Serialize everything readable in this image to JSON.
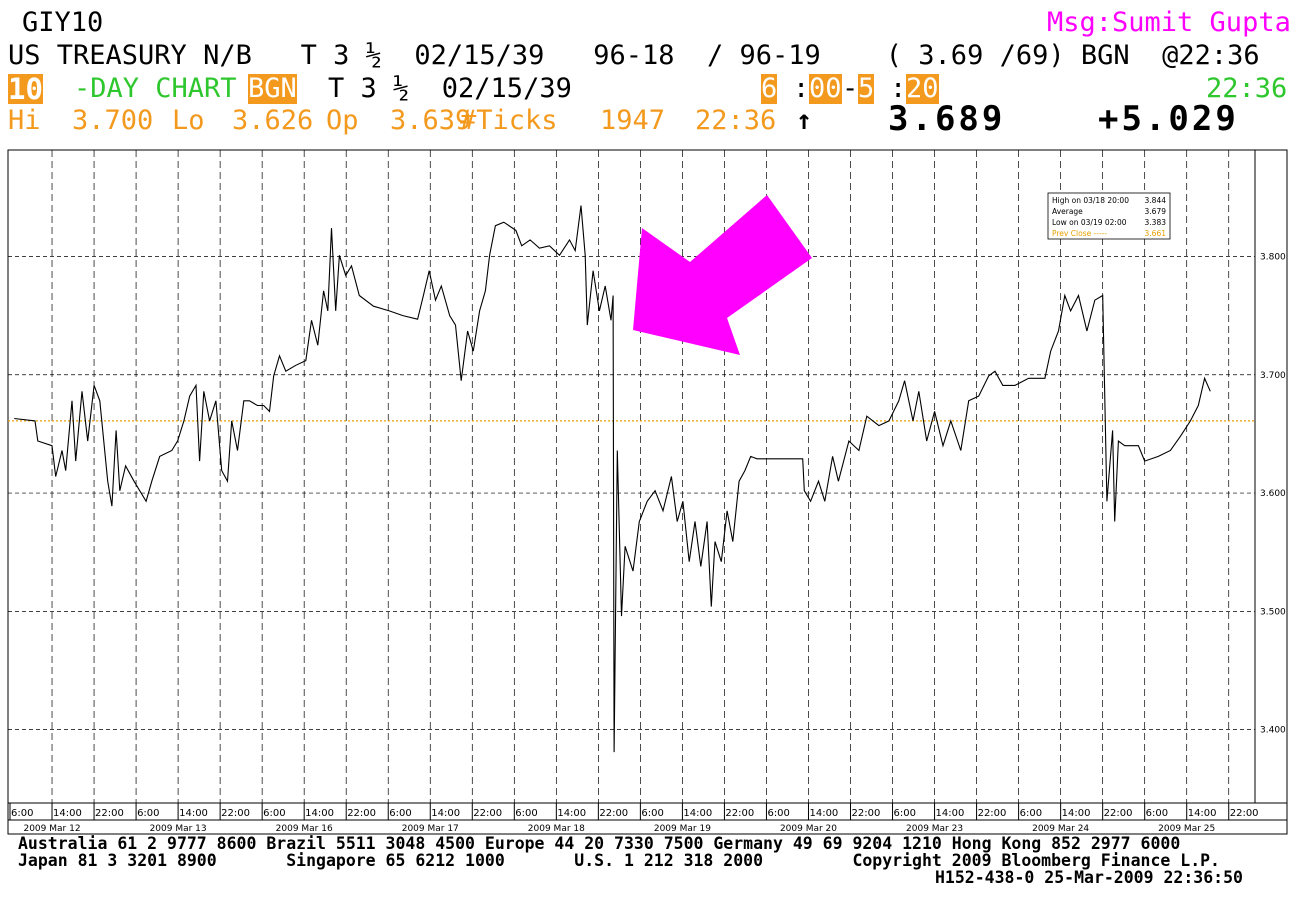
{
  "header": {
    "symbol": "GIY10",
    "msg": "Msg:Sumit Gupta",
    "security_line": "US TREASURY N/B   T 3 ½  02/15/39   96-18  / 96-19    ( 3.69 /69) BGN  @22:36",
    "chart_days": "10",
    "chart_label": "-DAY CHART",
    "source": "BGN",
    "bond": "T 3 ½  02/15/39",
    "start_hour": "6",
    "start_min": "00",
    "end_hour": "5",
    "end_min": "20",
    "time": "22:36",
    "stats": [
      "Hi",
      "3.700",
      "Lo",
      "3.626",
      "Op",
      "3.639",
      "#Ticks",
      "1947",
      "22:36"
    ],
    "direction": "↑",
    "last": "3.689",
    "change": "+5.029"
  },
  "chart_data": {
    "type": "line",
    "xlim": [
      0,
      237
    ],
    "ylim": [
      3.338,
      3.89
    ],
    "yticks": [
      {
        "value": 3.4,
        "label": "3.400"
      },
      {
        "value": 3.5,
        "label": "3.500"
      },
      {
        "value": 3.6,
        "label": "3.600"
      },
      {
        "value": 3.7,
        "label": "3.700"
      },
      {
        "value": 3.8,
        "label": "3.800"
      }
    ],
    "xticks": [
      {
        "value": 0,
        "label": "6:00"
      },
      {
        "value": 8,
        "label": "14:00"
      },
      {
        "value": 16,
        "label": "22:00"
      },
      {
        "value": 24,
        "label": "6:00"
      },
      {
        "value": 32,
        "label": "14:00"
      },
      {
        "value": 40,
        "label": "22:00"
      },
      {
        "value": 48,
        "label": "6:00"
      },
      {
        "value": 56,
        "label": "14:00"
      },
      {
        "value": 64,
        "label": "22:00"
      },
      {
        "value": 72,
        "label": "6:00"
      },
      {
        "value": 80,
        "label": "14:00"
      },
      {
        "value": 88,
        "label": "22:00"
      },
      {
        "value": 96,
        "label": "6:00"
      },
      {
        "value": 104,
        "label": "14:00"
      },
      {
        "value": 112,
        "label": "22:00"
      },
      {
        "value": 120,
        "label": "6:00"
      },
      {
        "value": 128,
        "label": "14:00"
      },
      {
        "value": 136,
        "label": "22:00"
      },
      {
        "value": 144,
        "label": "6:00"
      },
      {
        "value": 152,
        "label": "14:00"
      },
      {
        "value": 160,
        "label": "22:00"
      },
      {
        "value": 168,
        "label": "6:00"
      },
      {
        "value": 176,
        "label": "14:00"
      },
      {
        "value": 184,
        "label": "22:00"
      },
      {
        "value": 192,
        "label": "6:00"
      },
      {
        "value": 200,
        "label": "14:00"
      },
      {
        "value": 208,
        "label": "22:00"
      },
      {
        "value": 216,
        "label": "6:00"
      },
      {
        "value": 224,
        "label": "14:00"
      },
      {
        "value": 232,
        "label": "22:00"
      }
    ],
    "date_labels": [
      {
        "value": 8,
        "label": "2009 Mar 12"
      },
      {
        "value": 32,
        "label": "2009 Mar 13"
      },
      {
        "value": 56,
        "label": "2009 Mar 16"
      },
      {
        "value": 80,
        "label": "2009 Mar 17"
      },
      {
        "value": 104,
        "label": "2009 Mar 18"
      },
      {
        "value": 128,
        "label": "2009 Mar 19"
      },
      {
        "value": 152,
        "label": "2009 Mar 20"
      },
      {
        "value": 176,
        "label": "2009 Mar 23"
      },
      {
        "value": 200,
        "label": "2009 Mar 24"
      },
      {
        "value": 224,
        "label": "2009 Mar 25"
      }
    ],
    "grid": true,
    "series": [
      {
        "color": "#000000",
        "x": [
          0.8,
          4.75,
          5.3,
          8,
          8.7,
          9.9,
          10.6,
          11.8,
          12.5,
          13.7,
          14.8,
          16,
          17.1,
          18.6,
          19.4,
          20.2,
          20.9,
          22,
          23.6,
          25.9,
          27,
          28.5,
          30.8,
          31.9,
          33.1,
          34.2,
          35.4,
          36.1,
          36.9,
          38,
          39.2,
          40.3,
          41.4,
          42.2,
          43.3,
          44.5,
          45.6,
          47.1,
          48.3,
          49.4,
          50.2,
          51.3,
          52.5,
          54.4,
          56.3,
          57.4,
          58.6,
          59.7,
          60.5,
          61.2,
          62,
          62.7,
          63.9,
          65,
          66.5,
          69.2,
          72.2,
          74.8,
          77.6,
          78.7,
          79.8,
          81,
          82.1,
          83.7,
          84.8,
          85.9,
          87.1,
          88.2,
          89.4,
          90.5,
          91.3,
          92.4,
          94,
          96.3,
          97.4,
          99,
          100.8,
          102.7,
          104.6,
          106.5,
          107.6,
          108.7,
          109.5,
          109.9,
          111,
          112.2,
          113.3,
          114.4,
          114.8,
          115,
          115.6,
          116.4,
          117.1,
          118.6,
          119.8,
          121.3,
          122.8,
          124.3,
          125.9,
          127,
          128.1,
          129.3,
          130.4,
          131.5,
          132.7,
          133.5,
          134.2,
          135.4,
          136.5,
          137.6,
          138.8,
          139.9,
          141,
          142.2,
          150.9,
          151.2,
          152.4,
          153.9,
          155.1,
          156.6,
          157.7,
          159.7,
          161.6,
          163.1,
          165.4,
          167.3,
          169.2,
          170.3,
          171.9,
          173,
          174.5,
          176,
          177.6,
          179.1,
          181,
          182.5,
          184.4,
          186.3,
          187.5,
          189,
          191.3,
          193.9,
          197,
          198.1,
          199.6,
          200.8,
          201.9,
          203.4,
          205,
          206.5,
          208,
          208.8,
          209.9,
          210.3,
          211,
          212.2,
          214.8,
          216,
          218.6,
          220.9,
          222.8,
          224.7,
          226.2,
          227.4,
          228.5
        ],
        "values": [
          3.663,
          3.661,
          3.644,
          3.64,
          3.614,
          3.636,
          3.619,
          3.678,
          3.627,
          3.686,
          3.644,
          3.691,
          3.678,
          3.61,
          3.589,
          3.653,
          3.602,
          3.623,
          3.61,
          3.593,
          3.61,
          3.631,
          3.636,
          3.644,
          3.661,
          3.682,
          3.691,
          3.627,
          3.686,
          3.661,
          3.678,
          3.619,
          3.61,
          3.661,
          3.636,
          3.678,
          3.678,
          3.674,
          3.674,
          3.669,
          3.699,
          3.716,
          3.703,
          3.708,
          3.712,
          3.746,
          3.725,
          3.771,
          3.754,
          3.824,
          3.754,
          3.801,
          3.784,
          3.792,
          3.767,
          3.758,
          3.754,
          3.75,
          3.747,
          3.767,
          3.788,
          3.763,
          3.775,
          3.75,
          3.742,
          3.695,
          3.737,
          3.72,
          3.754,
          3.771,
          3.801,
          3.826,
          3.829,
          3.822,
          3.809,
          3.814,
          3.807,
          3.809,
          3.801,
          3.814,
          3.805,
          3.843,
          3.801,
          3.742,
          3.788,
          3.754,
          3.775,
          3.746,
          3.767,
          3.381,
          3.636,
          3.496,
          3.555,
          3.534,
          3.576,
          3.593,
          3.602,
          3.585,
          3.614,
          3.576,
          3.593,
          3.542,
          3.576,
          3.538,
          3.576,
          3.504,
          3.559,
          3.542,
          3.585,
          3.559,
          3.61,
          3.619,
          3.631,
          3.629,
          3.629,
          3.602,
          3.593,
          3.61,
          3.593,
          3.631,
          3.61,
          3.644,
          3.636,
          3.665,
          3.657,
          3.661,
          3.678,
          3.695,
          3.661,
          3.686,
          3.644,
          3.669,
          3.64,
          3.661,
          3.636,
          3.678,
          3.682,
          3.699,
          3.703,
          3.691,
          3.691,
          3.697,
          3.697,
          3.72,
          3.737,
          3.767,
          3.754,
          3.767,
          3.737,
          3.763,
          3.767,
          3.593,
          3.653,
          3.576,
          3.644,
          3.64,
          3.64,
          3.627,
          3.631,
          3.636,
          3.648,
          3.661,
          3.674,
          3.697,
          3.686
        ]
      }
    ],
    "stats_box": [
      {
        "label": "High on 03/18 20:00",
        "value": 3.844
      },
      {
        "label": "Average",
        "value": 3.679
      },
      {
        "label": "Low on 03/19 02:00",
        "value": 3.383
      },
      {
        "label": "Prev Close -----",
        "value": 3.661,
        "color": "#e8a000"
      }
    ]
  },
  "footer": {
    "lines": [
      "Australia 61 2 9777 8600 Brazil 5511 3048 4500 Europe 44 20 7330 7500 Germany 49 69 9204 1210 Hong Kong 852 2977 6000",
      "Japan 81 3 3201 8900       Singapore 65 6212 1000       U.S. 1 212 318 2000         Copyright 2009 Bloomberg Finance L.P.",
      "H152-438-0 25-Mar-2009 22:36:50"
    ]
  }
}
